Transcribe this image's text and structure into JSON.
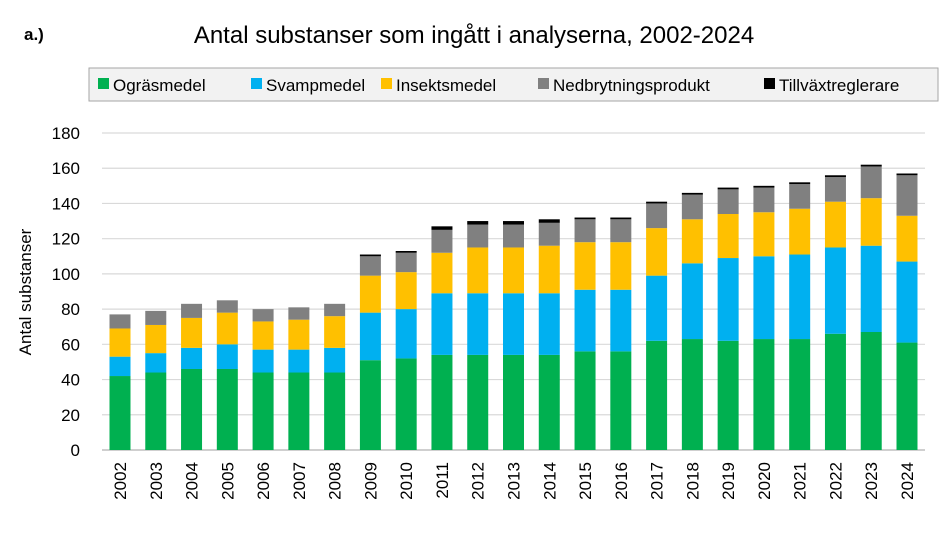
{
  "panel_label": "a.)",
  "chart_data": {
    "type": "bar",
    "stacked": true,
    "title": "Antal substanser som ingått i analyserna, 2002-2024",
    "xlabel": "",
    "ylabel": "Antal substanser",
    "ylim": [
      0,
      180
    ],
    "yticks": [
      0,
      20,
      40,
      60,
      80,
      100,
      120,
      140,
      160,
      180
    ],
    "grid": true,
    "legend_position": "top",
    "categories": [
      "2002",
      "2003",
      "2004",
      "2005",
      "2006",
      "2007",
      "2008",
      "2009",
      "2010",
      "2011",
      "2012",
      "2013",
      "2014",
      "2015",
      "2016",
      "2017",
      "2018",
      "2019",
      "2020",
      "2021",
      "2022",
      "2023",
      "2024"
    ],
    "series": [
      {
        "name": "Ogräsmedel",
        "color": "#00b050",
        "values": [
          42,
          44,
          46,
          46,
          44,
          44,
          44,
          51,
          52,
          54,
          54,
          54,
          54,
          56,
          56,
          62,
          63,
          62,
          63,
          63,
          66,
          67,
          61
        ]
      },
      {
        "name": "Svampmedel",
        "color": "#00b0f0",
        "values": [
          11,
          11,
          12,
          14,
          13,
          13,
          14,
          27,
          28,
          35,
          35,
          35,
          35,
          35,
          35,
          37,
          43,
          47,
          47,
          48,
          49,
          49,
          46
        ]
      },
      {
        "name": "Insektsmedel",
        "color": "#ffc000",
        "values": [
          16,
          16,
          17,
          18,
          16,
          17,
          18,
          21,
          21,
          23,
          26,
          26,
          27,
          27,
          27,
          27,
          25,
          25,
          25,
          26,
          26,
          27,
          26
        ]
      },
      {
        "name": "Nedbrytningsprodukt",
        "color": "#808080",
        "values": [
          8,
          8,
          8,
          7,
          7,
          7,
          7,
          11,
          11,
          13,
          13,
          13,
          13,
          13,
          13,
          14,
          14,
          14,
          14,
          14,
          14,
          18,
          23
        ]
      },
      {
        "name": "Tillväxtreglerare",
        "color": "#000000",
        "values": [
          0,
          0,
          0,
          0,
          0,
          0,
          0,
          1,
          1,
          2,
          2,
          2,
          2,
          1,
          1,
          1,
          1,
          1,
          1,
          1,
          1,
          1,
          1
        ]
      }
    ]
  }
}
